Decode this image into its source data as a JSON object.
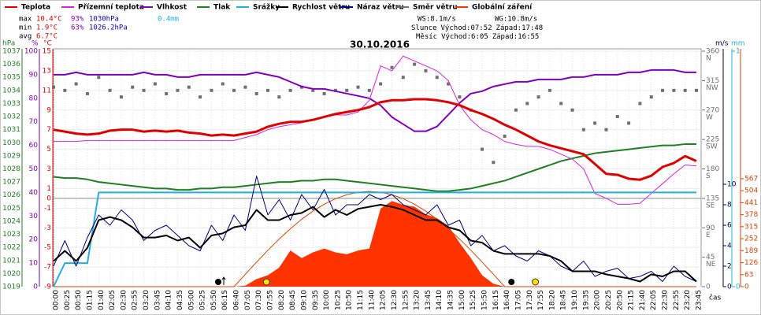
{
  "chart_data": {
    "type": "line",
    "title": "30.10.2016",
    "x_label": "čas",
    "categories": [
      "00:00",
      "00:25",
      "00:50",
      "01:15",
      "01:40",
      "02:05",
      "02:30",
      "02:55",
      "03:20",
      "03:45",
      "04:10",
      "04:35",
      "05:00",
      "05:25",
      "05:50",
      "06:15",
      "06:40",
      "07:05",
      "07:30",
      "07:55",
      "08:20",
      "08:45",
      "09:10",
      "09:35",
      "10:00",
      "10:25",
      "10:50",
      "11:15",
      "11:40",
      "12:05",
      "12:30",
      "12:55",
      "13:20",
      "13:45",
      "14:10",
      "14:35",
      "15:00",
      "15:25",
      "15:50",
      "16:15",
      "16:40",
      "17:05",
      "17:30",
      "17:55",
      "18:20",
      "18:45",
      "19:10",
      "19:35",
      "20:00",
      "20:25",
      "20:50",
      "21:15",
      "21:40",
      "22:05",
      "22:30",
      "22:55",
      "23:20",
      "23:45"
    ],
    "grid": true,
    "axes": {
      "press": {
        "label": "hPa",
        "color": "#208020",
        "side": "left",
        "ylim": [
          1019,
          1037
        ],
        "yticks": [
          1019,
          1020,
          1021,
          1022,
          1023,
          1024,
          1025,
          1026,
          1027,
          1028,
          1029,
          1030,
          1031,
          1032,
          1033,
          1034,
          1035,
          1036,
          1037
        ]
      },
      "hum": {
        "label": "%",
        "color": "#8000c0",
        "side": "left",
        "ylim": [
          0,
          100
        ],
        "yticks": [
          0,
          10,
          20,
          30,
          40,
          50,
          60,
          70,
          80,
          90,
          100
        ]
      },
      "temp": {
        "label": "°C",
        "color": "#e00000",
        "side": "left",
        "ylim": [
          -9,
          15
        ],
        "yticks": [
          -9,
          -7,
          -5,
          -3,
          -1,
          0,
          1,
          3,
          5,
          7,
          9,
          11,
          13,
          15
        ]
      },
      "dir": {
        "color": "#707070",
        "side": "right",
        "ylim": [
          0,
          360
        ],
        "yticks": [
          0,
          45,
          90,
          135,
          180,
          225,
          270,
          315,
          360
        ],
        "compass": [
          {
            "value": 45,
            "label": "NE"
          },
          {
            "value": 90,
            "label": "E"
          },
          {
            "value": 135,
            "label": "SE"
          },
          {
            "value": 180,
            "label": "S"
          },
          {
            "value": 225,
            "label": "SW"
          },
          {
            "value": 270,
            "label": "W"
          },
          {
            "value": 315,
            "label": "NW"
          },
          {
            "value": 360,
            "label": "N"
          }
        ]
      },
      "wind": {
        "label": "m/s",
        "color": "#000040",
        "side": "right",
        "ylim": [
          0,
          23
        ],
        "yticks": [
          0,
          2,
          4,
          6,
          8,
          10
        ]
      },
      "rain": {
        "label": "mm",
        "color": "#20b0e0",
        "side": "right",
        "ylim": [
          0,
          1
        ],
        "yticks": [
          0,
          1
        ]
      },
      "rad": {
        "color": "#e04000",
        "side": "right",
        "ylim": [
          0,
          1237
        ],
        "yticks": [
          0,
          63,
          126,
          189,
          252,
          315,
          378,
          441,
          504,
          567
        ]
      }
    },
    "series": [
      {
        "name": "Globální záření",
        "color": "#ff3300",
        "axis": "rad",
        "kind": "area",
        "values": [
          0,
          0,
          0,
          0,
          0,
          0,
          0,
          0,
          0,
          0,
          0,
          0,
          0,
          0,
          0,
          0,
          0,
          5,
          40,
          60,
          100,
          190,
          150,
          180,
          200,
          180,
          170,
          190,
          200,
          410,
          450,
          430,
          420,
          380,
          360,
          320,
          230,
          150,
          60,
          15,
          0,
          0,
          0,
          0,
          0,
          0,
          0,
          0,
          0,
          0,
          0,
          0,
          0,
          0,
          0,
          0,
          0,
          0
        ]
      },
      {
        "color": "#e04000",
        "axis": "rad",
        "kind": "line",
        "width": 1,
        "values": [
          0,
          0,
          0,
          0,
          0,
          0,
          0,
          0,
          0,
          0,
          0,
          0,
          0,
          0,
          0,
          0,
          0,
          65,
          129,
          191,
          250,
          304,
          354,
          397,
          433,
          462,
          483,
          496,
          500,
          496,
          483,
          462,
          433,
          397,
          354,
          304,
          250,
          191,
          129,
          65,
          0,
          0,
          0,
          0,
          0,
          0,
          0,
          0,
          0,
          0,
          0,
          0,
          0,
          0,
          0,
          0,
          0,
          0
        ]
      },
      {
        "name": "Tlak",
        "color": "#208020",
        "axis": "press",
        "kind": "line",
        "width": 2,
        "values": [
          1027.4,
          1027.3,
          1027.3,
          1027.2,
          1027.0,
          1026.9,
          1026.8,
          1026.7,
          1026.6,
          1026.5,
          1026.5,
          1026.4,
          1026.4,
          1026.5,
          1026.5,
          1026.6,
          1026.6,
          1026.7,
          1026.8,
          1026.9,
          1027.0,
          1027.0,
          1027.1,
          1027.1,
          1027.2,
          1027.2,
          1027.1,
          1027.0,
          1026.9,
          1026.8,
          1026.7,
          1026.6,
          1026.5,
          1026.4,
          1026.3,
          1026.3,
          1026.4,
          1026.5,
          1026.7,
          1026.9,
          1027.1,
          1027.4,
          1027.7,
          1028.0,
          1028.3,
          1028.6,
          1028.8,
          1029.0,
          1029.2,
          1029.3,
          1029.4,
          1029.5,
          1029.6,
          1029.7,
          1029.8,
          1029.8,
          1029.9,
          1029.9
        ]
      },
      {
        "name": "Směr větru",
        "color": "#707070",
        "axis": "dir",
        "kind": "markers",
        "values": [
          305,
          300,
          310,
          295,
          320,
          300,
          290,
          305,
          300,
          310,
          295,
          300,
          305,
          290,
          300,
          310,
          300,
          305,
          295,
          300,
          290,
          300,
          305,
          300,
          295,
          300,
          300,
          305,
          300,
          310,
          335,
          320,
          340,
          330,
          320,
          310,
          290,
          270,
          210,
          190,
          230,
          270,
          280,
          290,
          300,
          280,
          270,
          240,
          250,
          240,
          260,
          250,
          280,
          290,
          300,
          300,
          300,
          300
        ]
      },
      {
        "name": "Vlhkost",
        "color": "#8000c0",
        "axis": "hum",
        "kind": "line",
        "width": 2,
        "values": [
          90,
          90,
          91,
          90,
          90,
          90,
          90,
          90,
          91,
          90,
          90,
          89,
          89,
          90,
          90,
          90,
          90,
          90,
          91,
          90,
          89,
          87,
          85,
          84,
          84,
          83,
          82,
          81,
          80,
          77,
          72,
          69,
          66,
          66,
          68,
          73,
          78,
          82,
          83,
          85,
          86,
          87,
          87,
          88,
          88,
          88,
          89,
          89,
          90,
          90,
          90,
          91,
          91,
          92,
          92,
          92,
          91,
          91
        ]
      },
      {
        "name": "Přízemní teplota",
        "color": "#e020e0",
        "axis": "temp",
        "kind": "line",
        "width": 1,
        "values": [
          5.8,
          5.8,
          5.8,
          5.9,
          5.9,
          5.9,
          5.9,
          5.9,
          5.9,
          5.9,
          5.9,
          5.9,
          5.9,
          5.9,
          5.9,
          5.9,
          5.9,
          6.2,
          6.5,
          7.0,
          7.3,
          7.5,
          7.7,
          8.0,
          8.3,
          8.5,
          8.5,
          8.8,
          10.0,
          13.5,
          13.0,
          14.5,
          14.0,
          13.5,
          13.0,
          12.0,
          9.5,
          8.0,
          7.0,
          6.5,
          5.8,
          5.5,
          5.3,
          5.3,
          5.0,
          4.5,
          4.0,
          3.0,
          0.5,
          0.0,
          -0.6,
          -0.6,
          -0.5,
          0.5,
          1.5,
          2.5,
          3.4,
          3.3
        ]
      },
      {
        "name": "Teplota",
        "color": "#e00000",
        "axis": "temp",
        "kind": "line",
        "width": 3,
        "values": [
          7.0,
          6.8,
          6.6,
          6.5,
          6.6,
          6.9,
          7.0,
          7.0,
          6.8,
          6.9,
          6.8,
          6.9,
          6.7,
          6.6,
          6.4,
          6.5,
          6.4,
          6.6,
          6.8,
          7.3,
          7.6,
          7.8,
          7.8,
          8.0,
          8.3,
          8.6,
          8.8,
          9.0,
          9.3,
          9.8,
          10.0,
          10.0,
          10.1,
          10.1,
          10.0,
          9.8,
          9.5,
          9.0,
          8.6,
          8.1,
          7.5,
          7.0,
          6.4,
          5.8,
          5.4,
          5.1,
          4.8,
          4.5,
          3.5,
          2.5,
          2.4,
          2.0,
          1.9,
          2.3,
          3.2,
          3.6,
          4.3,
          3.8
        ]
      },
      {
        "name": "Srážky",
        "color": "#20b0e0",
        "axis": "rain",
        "kind": "line",
        "width": 2,
        "values": [
          0,
          0.1,
          0.1,
          0.1,
          0.4,
          0.4,
          0.4,
          0.4,
          0.4,
          0.4,
          0.4,
          0.4,
          0.4,
          0.4,
          0.4,
          0.4,
          0.4,
          0.4,
          0.4,
          0.4,
          0.4,
          0.4,
          0.4,
          0.4,
          0.4,
          0.4,
          0.4,
          0.4,
          0.4,
          0.4,
          0.4,
          0.4,
          0.4,
          0.4,
          0.4,
          0.4,
          0.4,
          0.4,
          0.4,
          0.4,
          0.4,
          0.4,
          0.4,
          0.4,
          0.4,
          0.4,
          0.4,
          0.4,
          0.4,
          0.4,
          0.4,
          0.4,
          0.4,
          0.4,
          0.4,
          0.4,
          0.4,
          0.4
        ]
      },
      {
        "name": "Náraz větru",
        "color": "#000080",
        "axis": "wind",
        "kind": "line",
        "width": 1,
        "values": [
          2.0,
          4.5,
          2.0,
          4.8,
          7.0,
          6.0,
          7.5,
          6.5,
          4.5,
          5.5,
          6.0,
          5.0,
          4.0,
          3.5,
          6.0,
          4.5,
          7.0,
          5.5,
          10.8,
          7.0,
          8.5,
          6.5,
          9.0,
          7.5,
          9.5,
          7.0,
          8.0,
          8.0,
          9.0,
          8.5,
          9.0,
          8.0,
          7.5,
          7.0,
          8.0,
          6.0,
          6.5,
          4.0,
          5.0,
          3.5,
          4.0,
          3.0,
          2.5,
          3.5,
          3.0,
          2.0,
          1.5,
          2.5,
          1.0,
          1.5,
          1.8,
          0.8,
          1.0,
          1.5,
          0.5,
          2.0,
          1.0,
          0.5
        ]
      },
      {
        "name": "Rychlost větru",
        "color": "#000000",
        "axis": "wind",
        "kind": "line",
        "width": 2,
        "values": [
          2.5,
          3.5,
          2.5,
          3.8,
          6.5,
          6.8,
          6.5,
          5.8,
          4.8,
          4.8,
          5.0,
          4.5,
          4.8,
          3.8,
          5.0,
          5.2,
          5.8,
          6.0,
          7.5,
          6.5,
          6.5,
          7.0,
          7.2,
          7.8,
          6.8,
          7.5,
          7.0,
          7.6,
          7.8,
          8.0,
          7.8,
          7.5,
          7.0,
          6.5,
          6.5,
          5.8,
          5.5,
          4.5,
          4.3,
          3.5,
          3.2,
          3.2,
          3.2,
          3.2,
          3.0,
          2.5,
          1.5,
          1.5,
          1.5,
          1.2,
          1.0,
          0.8,
          0.5,
          1.2,
          1.0,
          1.5,
          1.5,
          0.5
        ]
      }
    ],
    "legend_order": [
      6,
      5,
      4,
      2,
      7,
      9,
      8,
      3,
      0
    ],
    "stats": {
      "colors": [
        "#e00000",
        "#8000c0",
        "#0000c0",
        "#20b0e0"
      ],
      "rows": [
        {
          "label": "max",
          "values": [
            "10.4°C",
            "93%",
            "1030hPa",
            "0.4mm"
          ]
        },
        {
          "label": "min",
          "values": [
            "1.9°C",
            "63%",
            "1026.2hPa"
          ]
        },
        {
          "label": "avg",
          "values": [
            "6.7°C"
          ]
        }
      ]
    },
    "info": {
      "ws": "WS:8.1m/s",
      "wg": "WG:10.8m/s",
      "sun": {
        "label": "Slunce",
        "rise_label": "Východ:",
        "rise": "07:52",
        "set_label": "Západ:",
        "set": "17:48"
      },
      "moon": {
        "label": "Měsíc",
        "rise_label": "Východ:",
        "rise": "6:05",
        "set_label": "Západ:",
        "set": "16:55"
      }
    }
  }
}
